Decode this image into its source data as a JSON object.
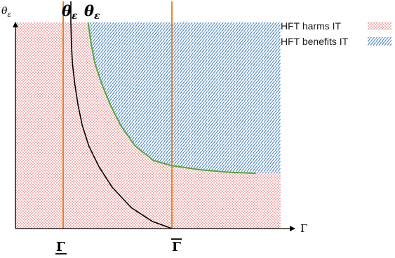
{
  "chart_data": {
    "type": "area",
    "title": "",
    "xlabel": "Γ",
    "ylabel": "θ_ε",
    "ylabel_base": "θ",
    "ylabel_sub": "ε",
    "curve_labels": [
      {
        "name": "black-curve-label",
        "base": "θ",
        "sub": "ε"
      },
      {
        "name": "green-curve-label",
        "base": "θ",
        "sub": "ε"
      }
    ],
    "xlim": [
      0,
      100
    ],
    "ylim": [
      0,
      100
    ],
    "threshold_lines": [
      {
        "name": "gamma-lower",
        "tick_label": "Γ",
        "decoration": "underline",
        "x": 18,
        "color": "#e87a18"
      },
      {
        "name": "gamma-upper",
        "tick_label": "Γ",
        "decoration": "overline",
        "x": 59,
        "color": "#e87a18"
      }
    ],
    "series": [
      {
        "role": "lower-threshold-curve",
        "color": "#000000",
        "points": [
          [
            20.9,
            100
          ],
          [
            21.1,
            90
          ],
          [
            21.5,
            80
          ],
          [
            22.4,
            70
          ],
          [
            23.6,
            60
          ],
          [
            25.2,
            50
          ],
          [
            27.7,
            40
          ],
          [
            31.5,
            30
          ],
          [
            36.5,
            20
          ],
          [
            43.8,
            10
          ],
          [
            51.6,
            3.5
          ],
          [
            59,
            0
          ]
        ]
      },
      {
        "role": "upper-threshold-curve",
        "color": "#58a63c",
        "points": [
          [
            27.4,
            100
          ],
          [
            28.5,
            90
          ],
          [
            30,
            80
          ],
          [
            32.6,
            70
          ],
          [
            35.8,
            60
          ],
          [
            39.7,
            50
          ],
          [
            45.2,
            40
          ],
          [
            52.1,
            33
          ],
          [
            59,
            30.5
          ],
          [
            70,
            28.5
          ],
          [
            80,
            27.4
          ],
          [
            90.7,
            26.8
          ]
        ]
      }
    ],
    "regions": [
      {
        "label": "HFT harms IT",
        "pattern": "red-dots",
        "color": "#e05050"
      },
      {
        "label": "HFT benefits IT",
        "pattern": "blue-hatch",
        "color": "#4a86c8"
      }
    ],
    "legend": {
      "placement": "top-right",
      "items": [
        {
          "label": "HFT harms IT",
          "pattern": "red-dots"
        },
        {
          "label": "HFT benefits IT",
          "pattern": "blue-hatch"
        }
      ]
    },
    "grid": false
  }
}
